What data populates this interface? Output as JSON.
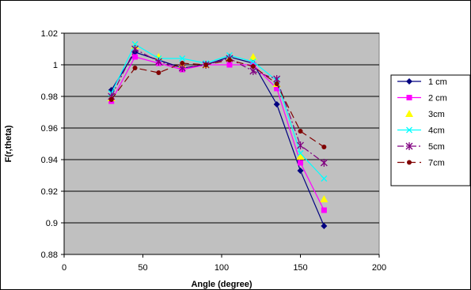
{
  "chart_data": {
    "type": "line",
    "xlabel": "Angle (degree)",
    "ylabel": "F(r,theta)",
    "xlim": [
      0,
      200
    ],
    "ylim": [
      0.88,
      1.02
    ],
    "x_ticks": [
      0,
      50,
      100,
      150,
      200
    ],
    "y_ticks": [
      0.88,
      0.9,
      0.92,
      0.94,
      0.96,
      0.98,
      1,
      1.02
    ],
    "y_tick_labels": [
      "0.88",
      "0.9",
      "0.92",
      "0.94",
      "0.96",
      "0.98",
      "1",
      "1.02"
    ],
    "grid": "horizontal",
    "plot_background": "#c0c0c0",
    "legend_position": "right",
    "x": [
      30,
      45,
      60,
      75,
      90,
      105,
      120,
      135,
      150,
      165
    ],
    "series": [
      {
        "name": "1 cm",
        "color": "#000080",
        "marker": "diamond",
        "dash": "solid",
        "values": [
          0.984,
          1.008,
          1.003,
          0.998,
          1.0,
          1.005,
          1.001,
          0.975,
          0.933,
          0.898
        ]
      },
      {
        "name": "2 cm",
        "color": "#ff00ff",
        "marker": "square",
        "dash": "solid",
        "values": [
          0.977,
          1.005,
          1.001,
          0.997,
          1.0,
          1.0,
          1.0,
          0.985,
          0.938,
          0.908
        ]
      },
      {
        "name": "3cm",
        "color": "#ffff00",
        "marker": "triangle",
        "dash": "none",
        "values": [
          0.979,
          1.012,
          1.005,
          1.0,
          1.0,
          1.004,
          1.005,
          0.988,
          0.942,
          0.915
        ]
      },
      {
        "name": "4cm",
        "color": "#00ffff",
        "marker": "x",
        "dash": "solid",
        "values": [
          0.982,
          1.013,
          1.004,
          1.004,
          1.001,
          1.006,
          1.002,
          0.99,
          0.944,
          0.928
        ]
      },
      {
        "name": "5cm",
        "color": "#800080",
        "marker": "star",
        "dash": "dashdot",
        "values": [
          0.98,
          1.01,
          1.002,
          0.998,
          1.0,
          1.004,
          0.996,
          0.991,
          0.949,
          0.938
        ]
      },
      {
        "name": "7cm",
        "color": "#800000",
        "marker": "circle",
        "dash": "longdash",
        "values": [
          0.978,
          0.998,
          0.995,
          1.001,
          1.0,
          1.003,
          0.999,
          0.988,
          0.958,
          0.948
        ]
      }
    ]
  }
}
